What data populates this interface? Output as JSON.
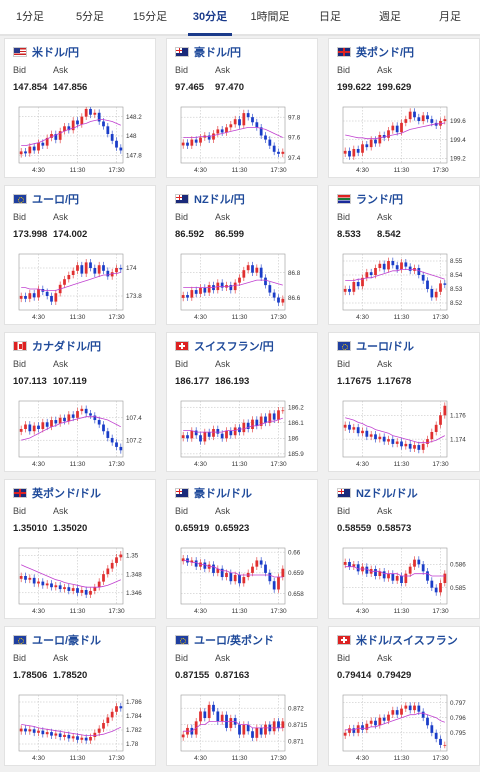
{
  "tabs": [
    {
      "label": "1分足",
      "active": false
    },
    {
      "label": "5分足",
      "active": false
    },
    {
      "label": "15分足",
      "active": false
    },
    {
      "label": "30分足",
      "active": true
    },
    {
      "label": "1時間足",
      "active": false
    },
    {
      "label": "日足",
      "active": false
    },
    {
      "label": "週足",
      "active": false
    },
    {
      "label": "月足",
      "active": false
    }
  ],
  "labels": {
    "bid": "Bid",
    "ask": "Ask"
  },
  "colors": {
    "up": "#e03030",
    "down": "#1a3dc8",
    "ma": "#c040d0",
    "grid": "#bbbbbb",
    "pair": "#1f4a9a"
  },
  "cards": [
    {
      "pair": "米ドル/円",
      "flag": "us-flag",
      "bid": "147.854",
      "ask": "147.856",
      "x_ticks": [
        "4:30",
        "11:30",
        "17:30"
      ],
      "y_ticks": [
        "148.2",
        "148",
        "147.8"
      ],
      "y_range": [
        147.72,
        148.3
      ],
      "closes": [
        147.84,
        147.82,
        147.89,
        147.85,
        147.93,
        147.9,
        147.98,
        148.02,
        147.96,
        148.05,
        148.1,
        148.06,
        148.16,
        148.12,
        148.2,
        148.28,
        148.22,
        148.24,
        148.15,
        148.1,
        148.02,
        147.95,
        147.88,
        147.85
      ],
      "ma": [
        147.9,
        147.9,
        147.91,
        147.92,
        147.93,
        147.95,
        147.97,
        147.99,
        148.01,
        148.03,
        148.05,
        148.07,
        148.08,
        148.1,
        148.12,
        148.13,
        148.15,
        148.16,
        148.17,
        148.17,
        148.16,
        148.15,
        148.13,
        148.11
      ]
    },
    {
      "pair": "豪ドル/円",
      "flag": "au-flag",
      "bid": "97.465",
      "ask": "97.470",
      "x_ticks": [
        "4:30",
        "11:30",
        "17:30"
      ],
      "y_ticks": [
        "97.8",
        "97.6",
        "97.4"
      ],
      "y_range": [
        97.35,
        97.9
      ],
      "closes": [
        97.55,
        97.52,
        97.58,
        97.55,
        97.6,
        97.62,
        97.58,
        97.64,
        97.68,
        97.65,
        97.7,
        97.73,
        97.78,
        97.72,
        97.84,
        97.8,
        97.75,
        97.7,
        97.62,
        97.58,
        97.52,
        97.46,
        97.44,
        97.46
      ],
      "ma": [
        97.6,
        97.6,
        97.6,
        97.6,
        97.61,
        97.61,
        97.61,
        97.62,
        97.63,
        97.64,
        97.65,
        97.66,
        97.67,
        97.68,
        97.69,
        97.7,
        97.7,
        97.7,
        97.69,
        97.68,
        97.66,
        97.64,
        97.62,
        97.6
      ]
    },
    {
      "pair": "英ポンド/円",
      "flag": "gb-flag",
      "bid": "199.622",
      "ask": "199.629",
      "x_ticks": [
        "4:30",
        "11:30",
        "17:30"
      ],
      "y_ticks": [
        "199.6",
        "199.4",
        "199.2"
      ],
      "y_range": [
        199.15,
        199.75
      ],
      "closes": [
        199.28,
        199.22,
        199.3,
        199.26,
        199.35,
        199.32,
        199.4,
        199.36,
        199.45,
        199.42,
        199.5,
        199.55,
        199.48,
        199.58,
        199.62,
        199.7,
        199.64,
        199.6,
        199.66,
        199.62,
        199.58,
        199.55,
        199.6,
        199.62
      ],
      "ma": [
        199.45,
        199.44,
        199.43,
        199.42,
        199.42,
        199.41,
        199.41,
        199.41,
        199.42,
        199.43,
        199.44,
        199.45,
        199.46,
        199.47,
        199.49,
        199.51,
        199.52,
        199.53,
        199.54,
        199.55,
        199.56,
        199.57,
        199.57,
        199.58
      ]
    },
    {
      "pair": "ユーロ/円",
      "flag": "eu-flag",
      "bid": "173.998",
      "ask": "174.002",
      "x_ticks": [
        "4:30",
        "11:30",
        "17:30"
      ],
      "y_ticks": [
        "174",
        "173.8"
      ],
      "y_range": [
        173.7,
        174.1
      ],
      "closes": [
        173.8,
        173.78,
        173.82,
        173.79,
        173.85,
        173.83,
        173.8,
        173.76,
        173.82,
        173.88,
        173.92,
        173.95,
        173.98,
        174.02,
        173.96,
        174.04,
        174.0,
        173.96,
        174.02,
        173.98,
        173.94,
        173.97,
        174.0,
        173.99
      ],
      "ma": [
        173.86,
        173.86,
        173.85,
        173.85,
        173.85,
        173.84,
        173.84,
        173.84,
        173.84,
        173.85,
        173.86,
        173.87,
        173.88,
        173.89,
        173.9,
        173.91,
        173.92,
        173.93,
        173.94,
        173.95,
        173.95,
        173.96,
        173.96,
        173.97
      ]
    },
    {
      "pair": "NZドル/円",
      "flag": "nz-flag",
      "bid": "86.592",
      "ask": "86.599",
      "x_ticks": [
        "4:30",
        "11:30",
        "17:30"
      ],
      "y_ticks": [
        "86.8",
        "86.6"
      ],
      "y_range": [
        86.5,
        86.95
      ],
      "closes": [
        86.62,
        86.6,
        86.66,
        86.63,
        86.68,
        86.64,
        86.7,
        86.66,
        86.72,
        86.68,
        86.7,
        86.66,
        86.72,
        86.76,
        86.82,
        86.86,
        86.8,
        86.84,
        86.76,
        86.7,
        86.64,
        86.6,
        86.56,
        86.59
      ],
      "ma": [
        86.68,
        86.68,
        86.68,
        86.68,
        86.68,
        86.68,
        86.68,
        86.68,
        86.69,
        86.69,
        86.69,
        86.69,
        86.7,
        86.7,
        86.71,
        86.72,
        86.73,
        86.74,
        86.74,
        86.74,
        86.73,
        86.72,
        86.71,
        86.7
      ]
    },
    {
      "pair": "ランド/円",
      "flag": "za-flag",
      "bid": "8.533",
      "ask": "8.542",
      "x_ticks": [
        "4:30",
        "11:30",
        "17:30"
      ],
      "y_ticks": [
        "8.55",
        "8.54",
        "8.53",
        "8.52"
      ],
      "y_range": [
        8.515,
        8.555
      ],
      "closes": [
        8.53,
        8.528,
        8.535,
        8.532,
        8.538,
        8.542,
        8.54,
        8.545,
        8.548,
        8.544,
        8.55,
        8.547,
        8.544,
        8.549,
        8.546,
        8.543,
        8.545,
        8.54,
        8.536,
        8.53,
        8.524,
        8.528,
        8.534,
        8.533
      ],
      "ma": [
        8.536,
        8.536,
        8.536,
        8.537,
        8.537,
        8.538,
        8.538,
        8.539,
        8.54,
        8.541,
        8.542,
        8.543,
        8.543,
        8.544,
        8.544,
        8.544,
        8.544,
        8.543,
        8.542,
        8.541,
        8.54,
        8.539,
        8.538,
        8.537
      ]
    },
    {
      "pair": "カナダドル/円",
      "flag": "ca-flag",
      "bid": "107.113",
      "ask": "107.119",
      "x_ticks": [
        "4:30",
        "11:30",
        "17:30"
      ],
      "y_ticks": [
        "107.4",
        "107.2"
      ],
      "y_range": [
        107.05,
        107.55
      ],
      "closes": [
        107.3,
        107.34,
        107.28,
        107.33,
        107.3,
        107.36,
        107.32,
        107.38,
        107.35,
        107.4,
        107.37,
        107.43,
        107.4,
        107.46,
        107.48,
        107.44,
        107.42,
        107.38,
        107.34,
        107.28,
        107.22,
        107.18,
        107.14,
        107.11
      ],
      "ma": [
        107.2,
        107.21,
        107.22,
        107.24,
        107.26,
        107.28,
        107.3,
        107.32,
        107.33,
        107.35,
        107.36,
        107.37,
        107.38,
        107.39,
        107.4,
        107.41,
        107.41,
        107.41,
        107.4,
        107.39,
        107.38,
        107.36,
        107.34,
        107.32
      ]
    },
    {
      "pair": "スイスフラン/円",
      "flag": "ch-flag",
      "bid": "186.177",
      "ask": "186.193",
      "x_ticks": [
        "4:30",
        "11:30",
        "17:30"
      ],
      "y_ticks": [
        "186.2",
        "186.1",
        "186",
        "185.9"
      ],
      "y_range": [
        185.88,
        186.24
      ],
      "closes": [
        186.02,
        186.0,
        186.05,
        186.02,
        185.98,
        186.04,
        186.01,
        186.06,
        186.03,
        186.0,
        186.05,
        186.02,
        186.07,
        186.04,
        186.1,
        186.06,
        186.12,
        186.08,
        186.14,
        186.1,
        186.16,
        186.12,
        186.18,
        186.18
      ],
      "ma": [
        186.05,
        186.05,
        186.05,
        186.04,
        186.04,
        186.04,
        186.04,
        186.04,
        186.04,
        186.04,
        186.05,
        186.05,
        186.05,
        186.06,
        186.06,
        186.07,
        186.08,
        186.08,
        186.09,
        186.1,
        186.11,
        186.11,
        186.12,
        186.13
      ]
    },
    {
      "pair": "ユーロ/ドル",
      "flag": "eu-flag",
      "bid": "1.17675",
      "ask": "1.17678",
      "x_ticks": [
        "4:30",
        "11:30",
        "17:30"
      ],
      "y_ticks": [
        "1.176",
        "1.174"
      ],
      "y_range": [
        1.1725,
        1.1772
      ],
      "closes": [
        1.1752,
        1.1748,
        1.175,
        1.1745,
        1.1747,
        1.1742,
        1.1744,
        1.174,
        1.1742,
        1.1738,
        1.174,
        1.1736,
        1.1738,
        1.1734,
        1.1736,
        1.1732,
        1.1735,
        1.1731,
        1.1736,
        1.174,
        1.1746,
        1.1752,
        1.176,
        1.1768
      ],
      "ma": [
        1.1758,
        1.1757,
        1.1756,
        1.1754,
        1.1753,
        1.1751,
        1.175,
        1.1748,
        1.1747,
        1.1746,
        1.1745,
        1.1743,
        1.1742,
        1.1741,
        1.174,
        1.1739,
        1.1738,
        1.1737,
        1.1737,
        1.1737,
        1.1738,
        1.1739,
        1.1741,
        1.1743
      ]
    },
    {
      "pair": "英ポンド/ドル",
      "flag": "gb-flag",
      "bid": "1.35010",
      "ask": "1.35020",
      "x_ticks": [
        "4:30",
        "11:30",
        "17:30"
      ],
      "y_ticks": [
        "1.35",
        "1.348",
        "1.346"
      ],
      "y_range": [
        1.3448,
        1.3508
      ],
      "closes": [
        1.3478,
        1.3474,
        1.3476,
        1.347,
        1.3472,
        1.3468,
        1.347,
        1.3466,
        1.3468,
        1.3464,
        1.3466,
        1.3462,
        1.3465,
        1.346,
        1.3463,
        1.3458,
        1.3462,
        1.3466,
        1.3472,
        1.348,
        1.3486,
        1.3492,
        1.3498,
        1.3501
      ],
      "ma": [
        1.349,
        1.3488,
        1.3486,
        1.3484,
        1.3482,
        1.348,
        1.3478,
        1.3476,
        1.3474,
        1.3473,
        1.3471,
        1.347,
        1.3469,
        1.3468,
        1.3467,
        1.3466,
        1.3466,
        1.3466,
        1.3466,
        1.3467,
        1.3468,
        1.347,
        1.3472,
        1.3474
      ]
    },
    {
      "pair": "豪ドル/ドル",
      "flag": "au-flag",
      "bid": "0.65919",
      "ask": "0.65923",
      "x_ticks": [
        "4:30",
        "11:30",
        "17:30"
      ],
      "y_ticks": [
        "0.66",
        "0.659",
        "0.658"
      ],
      "y_range": [
        0.6575,
        0.6602
      ],
      "closes": [
        0.6597,
        0.6595,
        0.6596,
        0.6593,
        0.6595,
        0.6592,
        0.6594,
        0.659,
        0.6592,
        0.6588,
        0.659,
        0.6586,
        0.6589,
        0.6585,
        0.6588,
        0.659,
        0.6593,
        0.6596,
        0.6594,
        0.659,
        0.6586,
        0.6582,
        0.6588,
        0.6592
      ],
      "ma": [
        0.6596,
        0.6596,
        0.6595,
        0.6595,
        0.6594,
        0.6594,
        0.6593,
        0.6593,
        0.6592,
        0.6591,
        0.6591,
        0.659,
        0.659,
        0.6589,
        0.6589,
        0.6589,
        0.6589,
        0.6589,
        0.6589,
        0.6589,
        0.6589,
        0.6588,
        0.6588,
        0.6588
      ]
    },
    {
      "pair": "NZドル/ドル",
      "flag": "nz-flag",
      "bid": "0.58559",
      "ask": "0.58573",
      "x_ticks": [
        "4:30",
        "11:30",
        "17:30"
      ],
      "y_ticks": [
        "0.586",
        "0.585"
      ],
      "y_range": [
        0.5843,
        0.5867
      ],
      "closes": [
        0.5861,
        0.5859,
        0.586,
        0.5857,
        0.5859,
        0.5856,
        0.5858,
        0.5855,
        0.5857,
        0.5854,
        0.5856,
        0.5853,
        0.5855,
        0.5852,
        0.5856,
        0.5859,
        0.5862,
        0.586,
        0.5857,
        0.5853,
        0.585,
        0.5848,
        0.5852,
        0.5856
      ],
      "ma": [
        0.5859,
        0.5859,
        0.5859,
        0.5858,
        0.5858,
        0.5858,
        0.5857,
        0.5857,
        0.5857,
        0.5856,
        0.5856,
        0.5856,
        0.5856,
        0.5855,
        0.5855,
        0.5855,
        0.5856,
        0.5856,
        0.5856,
        0.5856,
        0.5855,
        0.5855,
        0.5855,
        0.5855
      ]
    },
    {
      "pair": "ユーロ/豪ドル",
      "flag": "eu-flag",
      "bid": "1.78506",
      "ask": "1.78520",
      "x_ticks": [
        "4:30",
        "11:30",
        "17:30"
      ],
      "y_ticks": [
        "1.786",
        "1.784",
        "1.782",
        "1.78"
      ],
      "y_range": [
        1.779,
        1.787
      ],
      "closes": [
        1.7822,
        1.7818,
        1.7821,
        1.7816,
        1.7819,
        1.7814,
        1.7817,
        1.7812,
        1.7815,
        1.781,
        1.7813,
        1.7808,
        1.7811,
        1.7806,
        1.7809,
        1.7805,
        1.781,
        1.7816,
        1.7822,
        1.783,
        1.7838,
        1.7846,
        1.7854,
        1.7851
      ],
      "ma": [
        1.7828,
        1.7827,
        1.7826,
        1.7825,
        1.7823,
        1.7822,
        1.7821,
        1.782,
        1.7819,
        1.7818,
        1.7817,
        1.7816,
        1.7815,
        1.7814,
        1.7813,
        1.7812,
        1.7812,
        1.7812,
        1.7813,
        1.7814,
        1.7816,
        1.7818,
        1.7821,
        1.7824
      ]
    },
    {
      "pair": "ユーロ/英ポンド",
      "flag": "eu-flag",
      "bid": "0.87155",
      "ask": "0.87163",
      "x_ticks": [
        "4:30",
        "11:30",
        "17:30"
      ],
      "y_ticks": [
        "0.872",
        "0.8715",
        "0.871"
      ],
      "y_range": [
        0.8707,
        0.8724
      ],
      "closes": [
        0.8712,
        0.8714,
        0.8712,
        0.8716,
        0.8719,
        0.8717,
        0.8721,
        0.8719,
        0.8716,
        0.8718,
        0.8714,
        0.8717,
        0.8715,
        0.8712,
        0.8715,
        0.8713,
        0.8711,
        0.8714,
        0.8712,
        0.8715,
        0.8713,
        0.8716,
        0.8714,
        0.8716
      ],
      "ma": [
        0.8713,
        0.8713,
        0.8713,
        0.8714,
        0.8715,
        0.8715,
        0.8716,
        0.8716,
        0.8716,
        0.8716,
        0.8716,
        0.8716,
        0.8716,
        0.8715,
        0.8715,
        0.8715,
        0.8714,
        0.8714,
        0.8714,
        0.8714,
        0.8714,
        0.8714,
        0.8714,
        0.8714
      ]
    },
    {
      "pair": "米ドル/スイスフラン",
      "flag": "ch-flag",
      "bid": "0.79414",
      "ask": "0.79429",
      "x_ticks": [
        "4:30",
        "11:30",
        "17:30"
      ],
      "y_ticks": [
        "0.797",
        "0.796",
        "0.795"
      ],
      "y_range": [
        0.7938,
        0.7975
      ],
      "closes": [
        0.795,
        0.7953,
        0.795,
        0.7955,
        0.7952,
        0.7956,
        0.7958,
        0.7955,
        0.796,
        0.7958,
        0.7962,
        0.7965,
        0.7962,
        0.7966,
        0.7968,
        0.7965,
        0.7968,
        0.7964,
        0.796,
        0.7955,
        0.795,
        0.7946,
        0.7942,
        0.7942
      ],
      "ma": [
        0.7952,
        0.7952,
        0.7952,
        0.7953,
        0.7953,
        0.7953,
        0.7954,
        0.7954,
        0.7955,
        0.7956,
        0.7957,
        0.7958,
        0.7959,
        0.796,
        0.7961,
        0.7962,
        0.7962,
        0.7963,
        0.7963,
        0.7962,
        0.7961,
        0.796,
        0.7958,
        0.7957
      ]
    }
  ]
}
